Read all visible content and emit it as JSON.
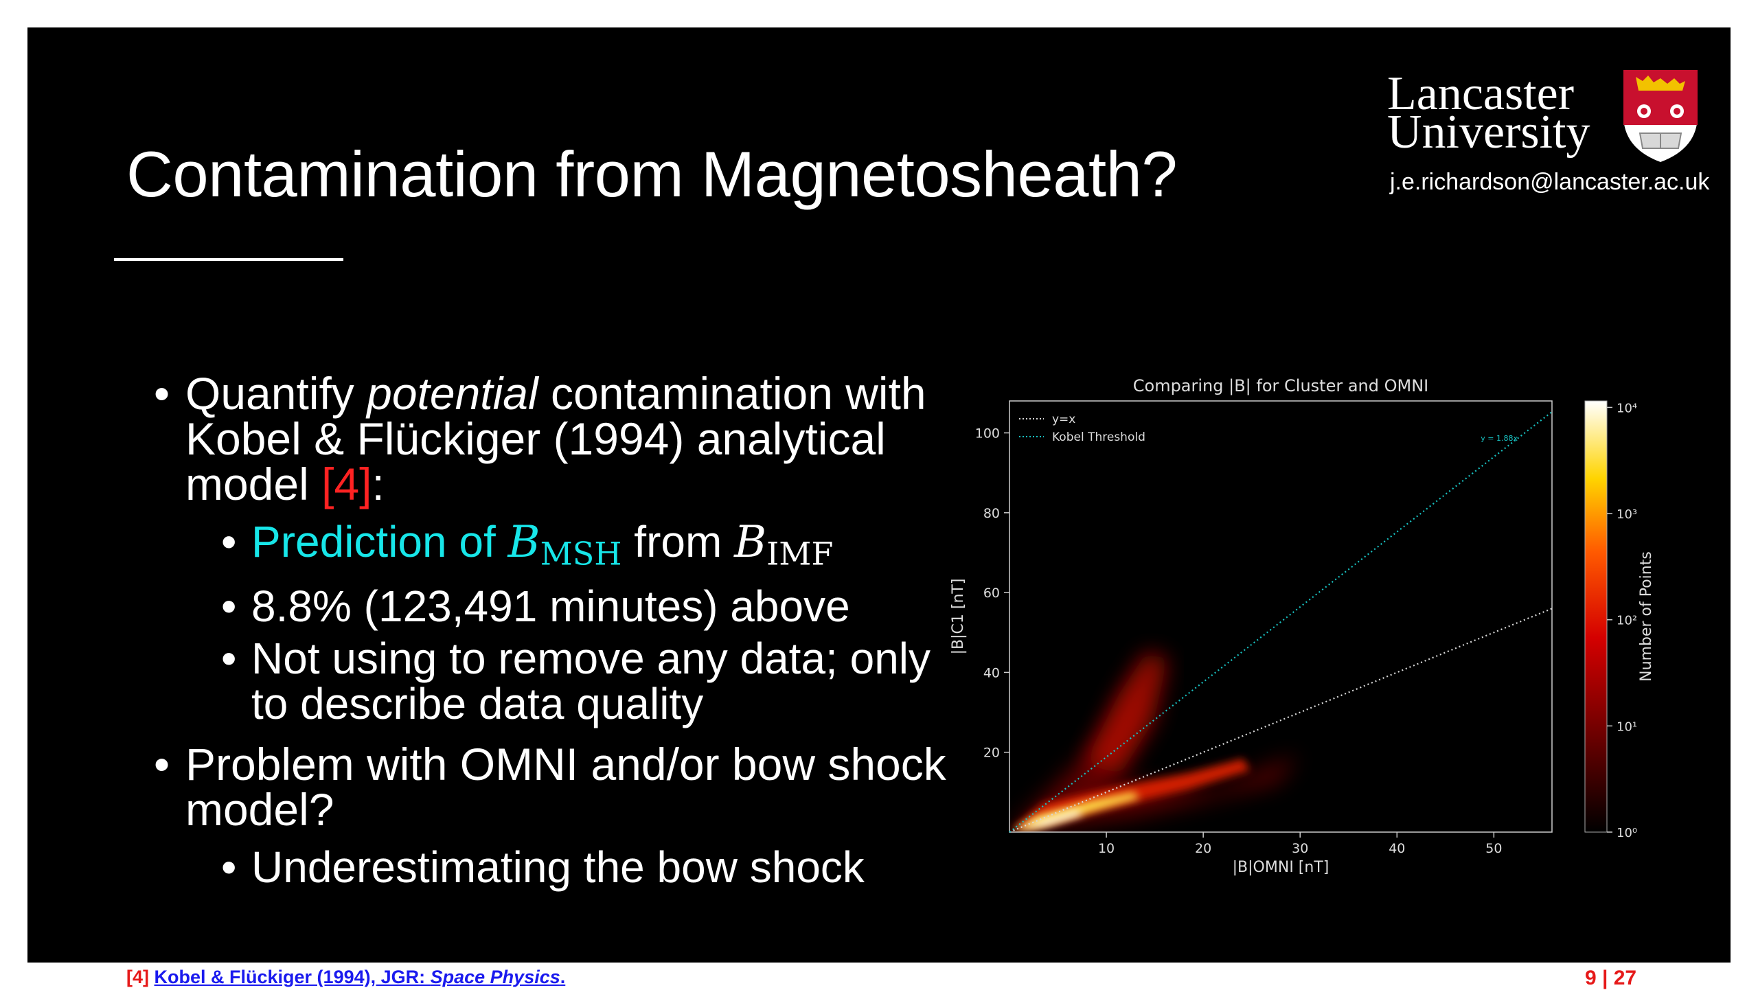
{
  "slide": {
    "title": "Contamination from Magnetosheath?",
    "logo": {
      "line1": "Lancaster",
      "line2": "University"
    },
    "email": "j.e.richardson@lancaster.ac.uk",
    "bullets": {
      "b1_pre": "Quantify ",
      "b1_em": "potential",
      "b1_mid": " contamination with Kobel & Flückiger (1994) analytical model ",
      "b1_ref": "[4]",
      "b1_post": ":",
      "sub1_pre": "Prediction of ",
      "sub1_var1": "B",
      "sub1_sub1": "MSH",
      "sub1_mid": " from ",
      "sub1_var2": "B",
      "sub1_sub2": "IMF",
      "sub2": "8.8% (123,491 minutes) above",
      "sub3": "Not using to remove any data; only to describe data quality",
      "b2": "Problem with OMNI and/or bow shock model?",
      "sub4": "Underestimating the bow shock"
    }
  },
  "chart_data": {
    "type": "heatmap",
    "title": "Comparing |B| for Cluster and OMNI",
    "xlabel": "|B|OMNI [nT]",
    "ylabel": "|B|C1 [nT]",
    "xlim": [
      0,
      56
    ],
    "ylim": [
      0,
      108
    ],
    "xticks": [
      10,
      20,
      30,
      40,
      50
    ],
    "yticks": [
      20,
      40,
      60,
      80,
      100
    ],
    "legend": {
      "placement": "top-left",
      "entries": [
        "y=x",
        "Kobel Threshold"
      ]
    },
    "series": [
      {
        "name": "y=x",
        "slope": 1.0,
        "color": "#d9d9d9",
        "style": "dotted"
      },
      {
        "name": "Kobel Threshold",
        "slope": 1.88,
        "color": "#18c2c2",
        "style": "dotted"
      }
    ],
    "line_annotation": "y = 1.88x",
    "colorbar": {
      "label": "Number of Points",
      "scale": "log",
      "ticks": [
        "10⁰",
        "10¹",
        "10²",
        "10³",
        "10⁴"
      ],
      "colors": [
        "#000000",
        "#6a0000",
        "#d40000",
        "#ff5a00",
        "#ffd400",
        "#ffffff"
      ]
    }
  },
  "footer": {
    "ref_num": "[4]",
    "ref_text": "Kobel & Flückiger (1994), JGR: ",
    "ref_italic": "Space Physics",
    "ref_end": ".",
    "page": "9 | 27"
  }
}
